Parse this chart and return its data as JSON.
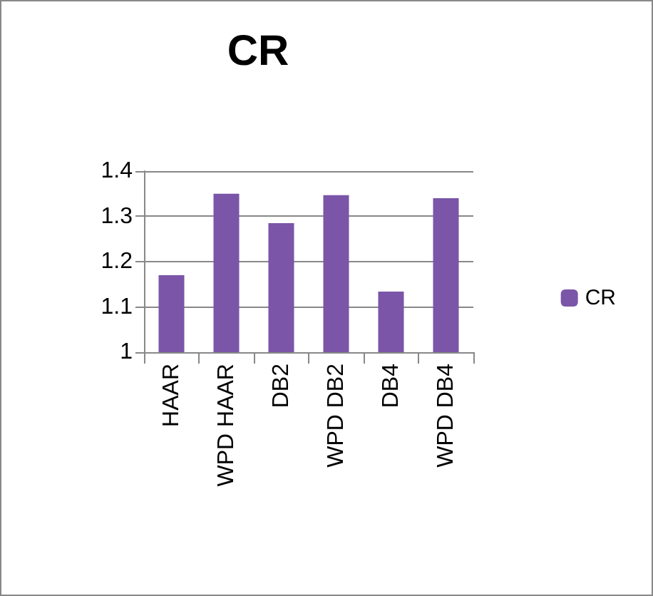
{
  "chart_data": {
    "type": "bar",
    "title": "CR",
    "categories": [
      "HAAR",
      "WPD HAAR",
      "DB2",
      "WPD DB2",
      "DB4",
      "WPD DB4"
    ],
    "series": [
      {
        "name": "CR",
        "color": "#7a55a8",
        "values": [
          1.17,
          1.35,
          1.285,
          1.347,
          1.134,
          1.34
        ]
      }
    ],
    "ylim": [
      1,
      1.4
    ],
    "yticks": [
      1,
      1.1,
      1.2,
      1.3,
      1.4
    ],
    "grid": "y",
    "legend": "right"
  }
}
